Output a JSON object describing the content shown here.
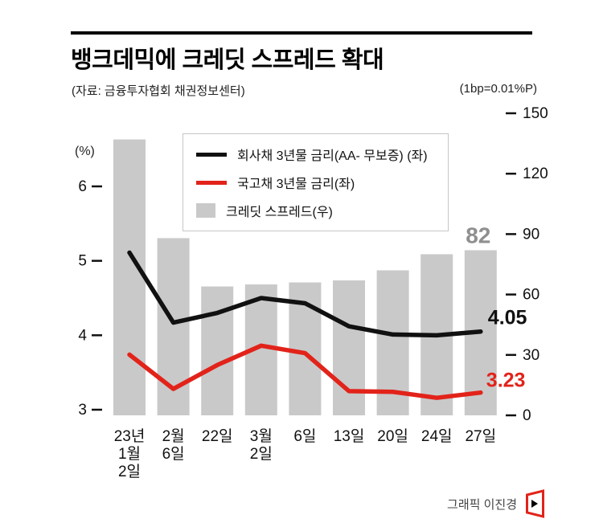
{
  "header": {
    "title": "뱅크데믹에 크레딧 스프레드 확대",
    "source": "(자료: 금융투자협회 채권정보센터)",
    "unit_note": "(1bp=0.01%P)"
  },
  "footer": {
    "credit": "그래픽 이진경"
  },
  "chart_data": {
    "type": "combo-bar-line",
    "categories": [
      [
        "23년",
        "1월",
        "2일"
      ],
      [
        "2월",
        "6일"
      ],
      [
        "22일"
      ],
      [
        "3월",
        "2일"
      ],
      [
        "6일"
      ],
      [
        "13일"
      ],
      [
        "20일"
      ],
      [
        "24일"
      ],
      [
        "27일"
      ]
    ],
    "bar_series": {
      "name": "크레딧 스프레드(우)",
      "axis": "right",
      "unit": "bp",
      "color": "#c9c9c9",
      "values": [
        137,
        88,
        64,
        65,
        66,
        67,
        72,
        80,
        82
      ]
    },
    "line_series": [
      {
        "name": "회사채 3년물 금리(AA- 무보증) (좌)",
        "axis": "left",
        "unit": "%",
        "color": "#111111",
        "values": [
          5.11,
          4.17,
          4.3,
          4.5,
          4.43,
          4.12,
          4.01,
          4.0,
          4.05
        ]
      },
      {
        "name": "국고채 3년물 금리(좌)",
        "axis": "left",
        "unit": "%",
        "color": "#e2231a",
        "values": [
          3.74,
          3.28,
          3.6,
          3.86,
          3.76,
          3.25,
          3.24,
          3.16,
          3.23
        ]
      }
    ],
    "left_axis": {
      "label": "(%)",
      "ticks": [
        6,
        5,
        4,
        3
      ],
      "min": 3,
      "max": 6
    },
    "right_axis": {
      "ticks": [
        150,
        120,
        90,
        60,
        30,
        0
      ],
      "min": 0,
      "max": 150
    },
    "annotations": {
      "spread": {
        "text": "82",
        "color": "#8f8f8f"
      },
      "corporate": {
        "text": "4.05",
        "color": "#111111"
      },
      "treasury": {
        "text": "3.23",
        "color": "#e2231a"
      }
    },
    "grid": false,
    "legend_position": "top-inside"
  }
}
